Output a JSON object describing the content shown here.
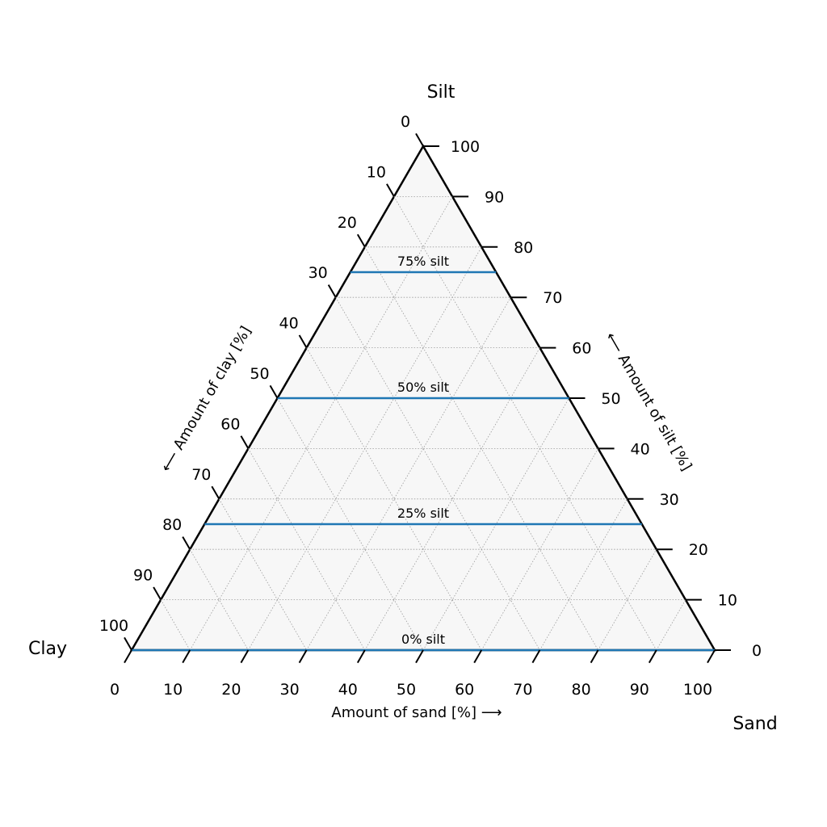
{
  "chart_data": {
    "type": "line",
    "subtype": "ternary",
    "components": {
      "top": "Silt",
      "left": "Clay",
      "right": "Sand"
    },
    "axes": {
      "bottom": {
        "label": "Amount of sand [%]",
        "arrow": "⟶",
        "component": "Sand",
        "range": [
          0,
          100
        ]
      },
      "right": {
        "label": "Amount of silt [%]",
        "arrow": "⟵",
        "component": "Silt",
        "range": [
          0,
          100
        ]
      },
      "left": {
        "label": "Amount of clay [%]",
        "arrow": "⟵",
        "component": "Clay",
        "range": [
          0,
          100
        ]
      }
    },
    "ticks": [
      0,
      10,
      20,
      30,
      40,
      50,
      60,
      70,
      80,
      90,
      100
    ],
    "grid": true,
    "series": [
      {
        "label": "0% silt",
        "silt": 0,
        "color": "#1f77b4"
      },
      {
        "label": "25% silt",
        "silt": 25,
        "color": "#1f77b4"
      },
      {
        "label": "50% silt",
        "silt": 50,
        "color": "#1f77b4"
      },
      {
        "label": "75% silt",
        "silt": 75,
        "color": "#1f77b4"
      }
    ],
    "background_color": "#f7f7f7"
  }
}
